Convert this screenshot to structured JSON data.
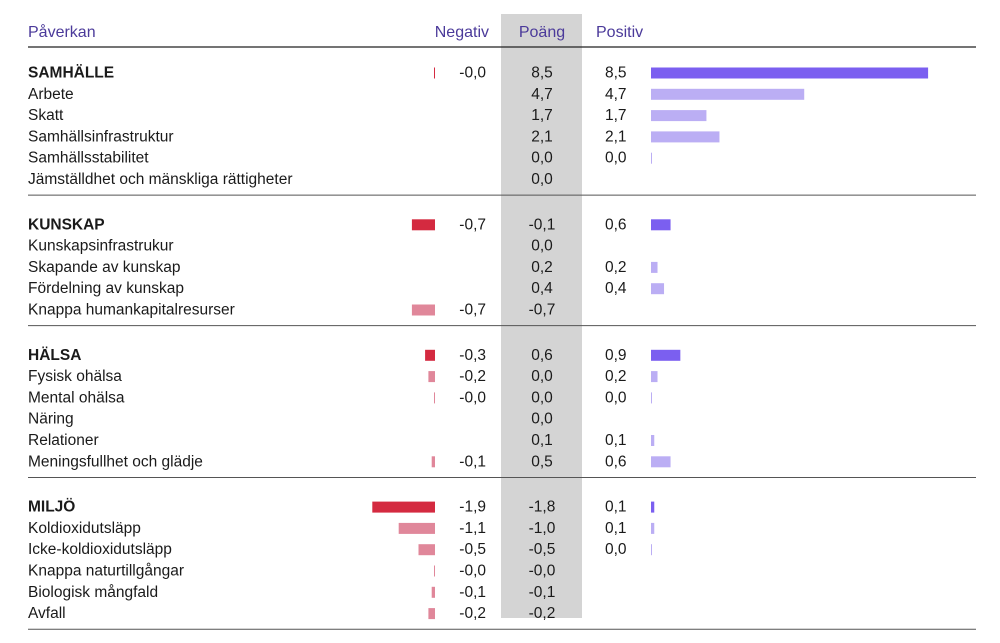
{
  "header": {
    "impact": "Påverkan",
    "negative": "Negativ",
    "score": "Poäng",
    "positive": "Positiv"
  },
  "colors": {
    "header_text": "#4b3a9a",
    "score_column_bg": "#d4d4d4",
    "negative_group": "#d42a40",
    "negative_item": "#e0879a",
    "positive_group": "#7b5ff0",
    "positive_item": "#bbaef4",
    "divider": "#555555"
  },
  "chart_data": {
    "type": "table",
    "columns": [
      "Påverkan",
      "Negativ",
      "Poäng",
      "Positiv"
    ],
    "groups": [
      {
        "name": "SAMHÄLLE",
        "negative": "-0,0",
        "score": "8,5",
        "positive": "8,5",
        "neg_value": 0.0,
        "pos_value": 8.5,
        "items": [
          {
            "name": "Arbete",
            "negative": "",
            "score": "4,7",
            "positive": "4,7",
            "neg_value": null,
            "pos_value": 4.7
          },
          {
            "name": "Skatt",
            "negative": "",
            "score": "1,7",
            "positive": "1,7",
            "neg_value": null,
            "pos_value": 1.7
          },
          {
            "name": "Samhällsinfrastruktur",
            "negative": "",
            "score": "2,1",
            "positive": "2,1",
            "neg_value": null,
            "pos_value": 2.1
          },
          {
            "name": "Samhällsstabilitet",
            "negative": "",
            "score": "0,0",
            "positive": "0,0",
            "neg_value": null,
            "pos_value": 0.0
          },
          {
            "name": "Jämställdhet och mänskliga rättigheter",
            "negative": "",
            "score": "0,0",
            "positive": "",
            "neg_value": null,
            "pos_value": null
          }
        ]
      },
      {
        "name": "KUNSKAP",
        "negative": "-0,7",
        "score": "-0,1",
        "positive": "0,6",
        "neg_value": 0.7,
        "pos_value": 0.6,
        "items": [
          {
            "name": "Kunskapsinfrastrukur",
            "negative": "",
            "score": "0,0",
            "positive": "",
            "neg_value": null,
            "pos_value": null
          },
          {
            "name": "Skapande av kunskap",
            "negative": "",
            "score": "0,2",
            "positive": "0,2",
            "neg_value": null,
            "pos_value": 0.2
          },
          {
            "name": "Fördelning av kunskap",
            "negative": "",
            "score": "0,4",
            "positive": "0,4",
            "neg_value": null,
            "pos_value": 0.4
          },
          {
            "name": "Knappa humankapitalresurser",
            "negative": "-0,7",
            "score": "-0,7",
            "positive": "",
            "neg_value": 0.7,
            "pos_value": null
          }
        ]
      },
      {
        "name": "HÄLSA",
        "negative": "-0,3",
        "score": "0,6",
        "positive": "0,9",
        "neg_value": 0.3,
        "pos_value": 0.9,
        "items": [
          {
            "name": "Fysisk ohälsa",
            "negative": "-0,2",
            "score": "0,0",
            "positive": "0,2",
            "neg_value": 0.2,
            "pos_value": 0.2
          },
          {
            "name": "Mental ohälsa",
            "negative": "-0,0",
            "score": "0,0",
            "positive": "0,0",
            "neg_value": 0.0,
            "pos_value": 0.0
          },
          {
            "name": "Näring",
            "negative": "",
            "score": "0,0",
            "positive": "",
            "neg_value": null,
            "pos_value": null
          },
          {
            "name": "Relationer",
            "negative": "",
            "score": "0,1",
            "positive": "0,1",
            "neg_value": null,
            "pos_value": 0.1
          },
          {
            "name": "Meningsfullhet och glädje",
            "negative": "-0,1",
            "score": "0,5",
            "positive": "0,6",
            "neg_value": 0.1,
            "pos_value": 0.6
          }
        ]
      },
      {
        "name": "MILJÖ",
        "negative": "-1,9",
        "score": "-1,8",
        "positive": "0,1",
        "neg_value": 1.9,
        "pos_value": 0.1,
        "items": [
          {
            "name": "Koldioxidutsläpp",
            "negative": "-1,1",
            "score": "-1,0",
            "positive": "0,1",
            "neg_value": 1.1,
            "pos_value": 0.1
          },
          {
            "name": "Icke-koldioxidutsläpp",
            "negative": "-0,5",
            "score": "-0,5",
            "positive": "0,0",
            "neg_value": 0.5,
            "pos_value": 0.0
          },
          {
            "name": "Knappa naturtillgångar",
            "negative": "-0,0",
            "score": "-0,0",
            "positive": "",
            "neg_value": 0.0,
            "pos_value": null
          },
          {
            "name": "Biologisk mångfald",
            "negative": "-0,1",
            "score": "-0,1",
            "positive": "",
            "neg_value": 0.1,
            "pos_value": null
          },
          {
            "name": "Avfall",
            "negative": "-0,2",
            "score": "-0,2",
            "positive": "",
            "neg_value": 0.2,
            "pos_value": null
          }
        ]
      }
    ]
  }
}
